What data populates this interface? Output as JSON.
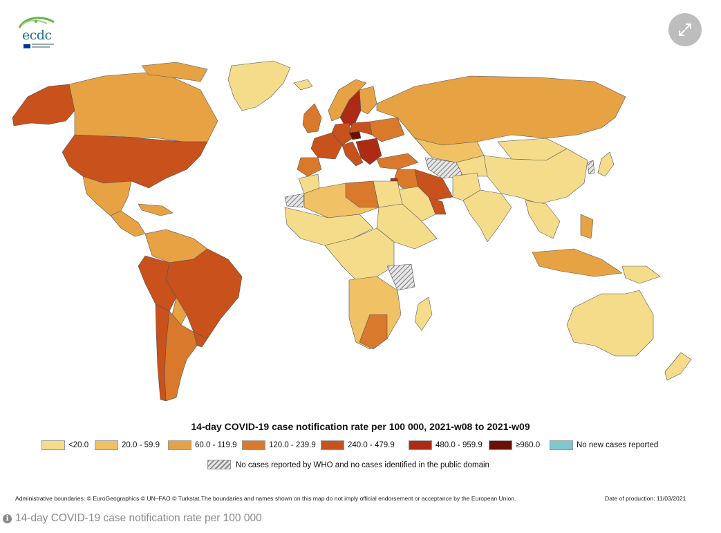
{
  "logo": {
    "text": "ecdc"
  },
  "expand_button": {
    "icon": "expand-icon"
  },
  "colors": {
    "lt20": "#f5dc8a",
    "20_59": "#f0c265",
    "60_119": "#e7a244",
    "120_239": "#d9792c",
    "240_479": "#c9511b",
    "480_959": "#ad2b14",
    "ge960": "#6e0f05",
    "no_new": "#7ec8cf",
    "ocean": "#ffffff",
    "border": "#555555"
  },
  "legend": {
    "title": "14-day COVID-19 case notification rate per 100 000, 2021-w08 to 2021-w09",
    "items": [
      {
        "label": "<20.0",
        "color": "#f5dc8a"
      },
      {
        "label": "20.0 - 59.9",
        "color": "#f0c265"
      },
      {
        "label": "60.0 - 119.9",
        "color": "#e7a244"
      },
      {
        "label": "120.0 - 239.9",
        "color": "#d9792c"
      },
      {
        "label": "240.0 - 479.9",
        "color": "#c9511b"
      },
      {
        "label": "480.0 - 959.9",
        "color": "#ad2b14"
      },
      {
        "label": "≥960.0",
        "color": "#6e0f05"
      },
      {
        "label": "No new cases reported",
        "color": "#7ec8cf"
      }
    ],
    "no_data_label": "No cases reported by WHO and no cases identified in the public domain"
  },
  "footer": {
    "admin": "Administrative boundaries: © EuroGeographics © UN–FAO © Turkstat.The boundaries and names shown on this map do not imply official endorsement or acceptance by the European Union.",
    "date": "Date of production: 11/03/2021"
  },
  "caption": "14-day COVID-19 case notification rate per 100 000"
}
